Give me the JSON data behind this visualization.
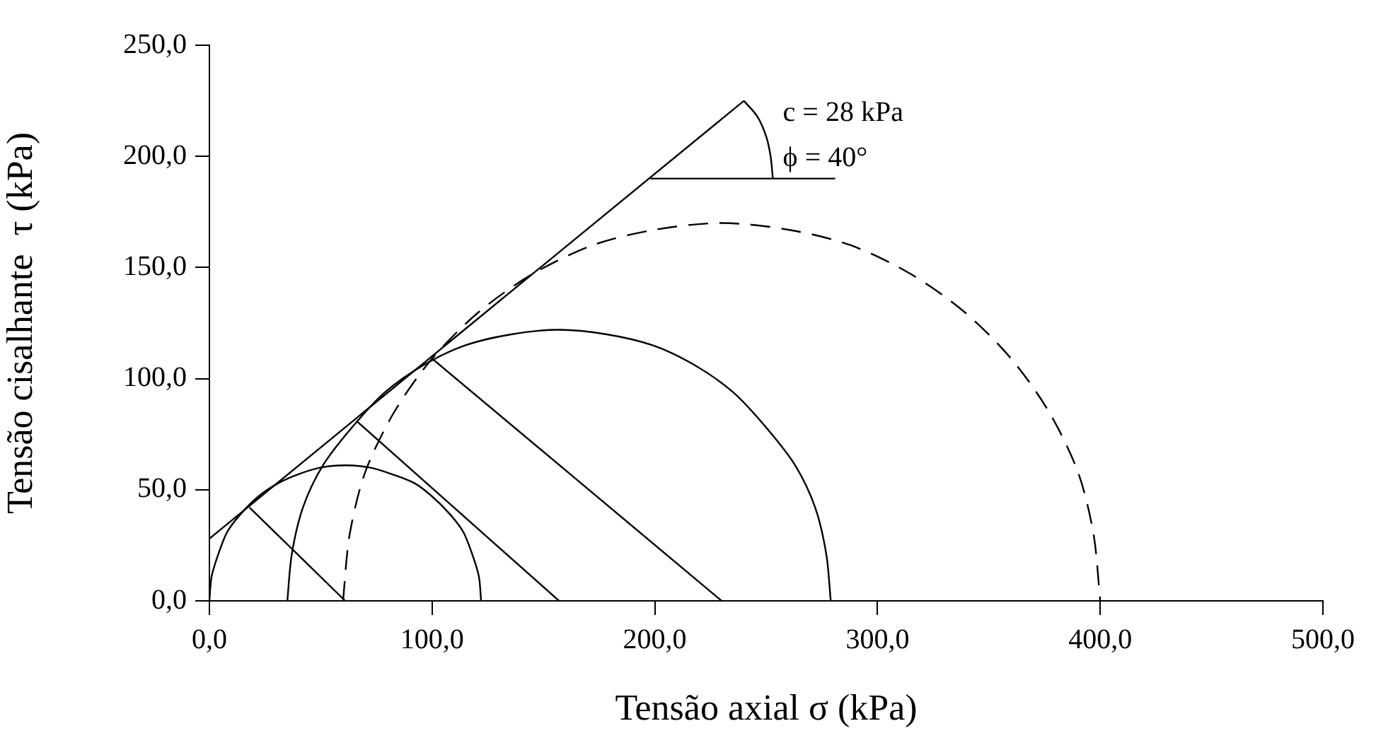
{
  "chart_data": {
    "type": "line",
    "xlabel": "Tensão axial σ (kPa)",
    "ylabel": "Tensão cisalhante  τ (kPa)",
    "xlim": [
      0,
      500
    ],
    "ylim": [
      0,
      250
    ],
    "xticks": [
      {
        "value": 0,
        "label": "0,0"
      },
      {
        "value": 100,
        "label": "100,0"
      },
      {
        "value": 200,
        "label": "200,0"
      },
      {
        "value": 300,
        "label": "300,0"
      },
      {
        "value": 400,
        "label": "400,0"
      },
      {
        "value": 500,
        "label": "500,0"
      }
    ],
    "yticks": [
      {
        "value": 0,
        "label": "0,0"
      },
      {
        "value": 50,
        "label": "50,0"
      },
      {
        "value": 100,
        "label": "100,0"
      },
      {
        "value": 150,
        "label": "150,0"
      },
      {
        "value": 200,
        "label": "200,0"
      },
      {
        "value": 250,
        "label": "250,0"
      }
    ],
    "marker": "none",
    "series": [
      {
        "color": "#000000",
        "line_style": "solid",
        "x": [
          0,
          1,
          4,
          8,
          14,
          22,
          31,
          40,
          50,
          61,
          72,
          82,
          92,
          100,
          108,
          114,
          118,
          121,
          122
        ],
        "values": [
          0,
          11,
          21,
          31,
          39,
          47,
          53,
          57,
          60,
          61,
          60,
          57,
          53,
          47,
          39,
          31,
          21,
          11,
          0
        ]
      },
      {
        "color": "#000000",
        "line_style": "solid",
        "x": [
          35,
          37,
          42,
          51,
          64,
          79,
          96,
          115,
          136,
          157,
          178,
          199,
          218,
          235,
          250,
          263,
          272,
          277,
          279
        ],
        "values": [
          0,
          21,
          42,
          61,
          78,
          94,
          106,
          115,
          120,
          122,
          120,
          115,
          106,
          94,
          78,
          61,
          42,
          21,
          0
        ]
      },
      {
        "color": "#000000",
        "line_style": "dashed",
        "x": [
          60,
          63,
          70,
          83,
          100,
          121,
          145,
          172,
          200,
          230,
          260,
          288,
          315,
          339,
          360,
          377,
          390,
          397,
          400
        ],
        "values": [
          0,
          30,
          58,
          85,
          109,
          130,
          147,
          160,
          167,
          170,
          167,
          160,
          147,
          130,
          109,
          85,
          58,
          30,
          0
        ]
      },
      {
        "color": "#000000",
        "line_style": "solid",
        "x": [
          0,
          240
        ],
        "values": [
          28,
          225
        ]
      },
      {
        "color": "#000000",
        "line_style": "solid",
        "x": [
          18,
          61
        ],
        "values": [
          42,
          0
        ]
      },
      {
        "color": "#000000",
        "line_style": "solid",
        "x": [
          66,
          157
        ],
        "values": [
          81,
          0
        ]
      },
      {
        "color": "#000000",
        "line_style": "solid",
        "x": [
          100,
          230
        ],
        "values": [
          109,
          0
        ]
      },
      {
        "color": "#000000",
        "line_style": "solid",
        "x": [
          198,
          281
        ],
        "values": [
          190,
          190
        ]
      },
      {
        "color": "#000000",
        "line_style": "solid",
        "x": [
          253,
          252,
          250,
          246,
          240
        ],
        "values": [
          190,
          200,
          209,
          218,
          225
        ]
      }
    ],
    "annotations": [
      "c = 28 kPa",
      "ϕ = 40°"
    ]
  }
}
